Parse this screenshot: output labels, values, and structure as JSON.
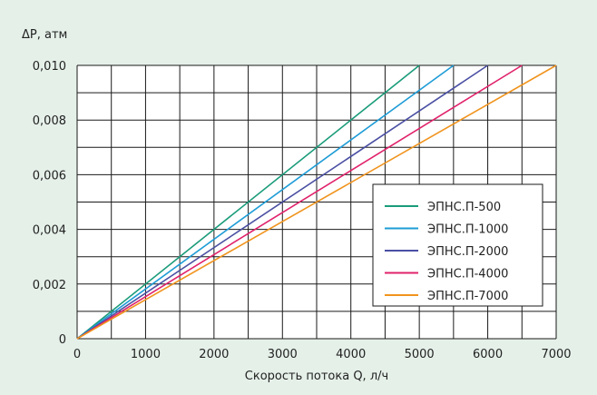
{
  "chart_data": {
    "type": "line",
    "title": "",
    "ylabel": "ΔP, атм",
    "xlabel": "Скорость потока Q, л/ч",
    "xlim": [
      0,
      7000
    ],
    "ylim": [
      0,
      0.01
    ],
    "x_ticks": [
      0,
      500,
      1000,
      1500,
      2000,
      2500,
      3000,
      3500,
      4000,
      4500,
      5000,
      5500,
      6000,
      6500,
      7000
    ],
    "x_tick_labels": [
      "0",
      "1000",
      "2000",
      "3000",
      "4000",
      "5000",
      "6000",
      "7000"
    ],
    "x_tick_label_values": [
      0,
      1000,
      2000,
      3000,
      4000,
      5000,
      6000,
      7000
    ],
    "y_ticks": [
      0,
      0.001,
      0.002,
      0.003,
      0.004,
      0.005,
      0.006,
      0.007,
      0.008,
      0.009,
      0.01
    ],
    "y_tick_labels": [
      "0",
      "0,002",
      "0,004",
      "0,006",
      "0,008",
      "0,010"
    ],
    "y_tick_label_values": [
      0,
      0.002,
      0.004,
      0.006,
      0.008,
      0.01
    ],
    "grid": true,
    "legend_position": "right",
    "series": [
      {
        "name": "ЭПНС.П-500",
        "color": "#1a9c7a",
        "x": [
          0,
          5000
        ],
        "y": [
          0,
          0.01
        ]
      },
      {
        "name": "ЭПНС.П-1000",
        "color": "#1e9cd6",
        "x": [
          0,
          5500
        ],
        "y": [
          0,
          0.01
        ]
      },
      {
        "name": "ЭПНС.П-2000",
        "color": "#4a4fa2",
        "x": [
          0,
          6000
        ],
        "y": [
          0,
          0.01
        ]
      },
      {
        "name": "ЭПНС.П-4000",
        "color": "#e0226b",
        "x": [
          0,
          6500
        ],
        "y": [
          0,
          0.01
        ]
      },
      {
        "name": "ЭПНС.П-7000",
        "color": "#f0941e",
        "x": [
          0,
          7000
        ],
        "y": [
          0,
          0.01
        ]
      }
    ]
  }
}
